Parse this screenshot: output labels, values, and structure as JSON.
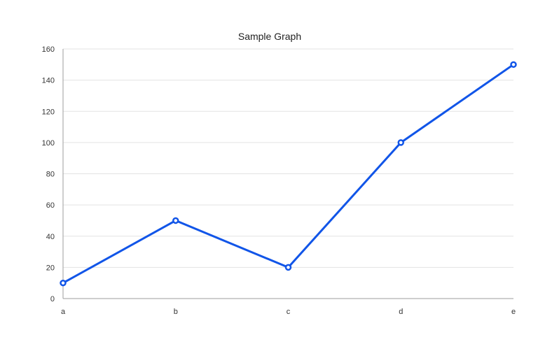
{
  "chart_data": {
    "type": "line",
    "title": "Sample Graph",
    "xlabel": "",
    "ylabel": "",
    "categories": [
      "a",
      "b",
      "c",
      "d",
      "e"
    ],
    "series": [
      {
        "values": [
          10,
          50,
          20,
          100,
          150
        ]
      }
    ],
    "ylim": [
      0,
      160
    ],
    "yticks": [
      "0",
      "20",
      "40",
      "60",
      "80",
      "100",
      "120",
      "140",
      "160"
    ],
    "grid": "horizontal",
    "legend": "none",
    "colors": {
      "series": "#1155e8",
      "grid": "#e3e3e3",
      "axis": "#9e9e9e"
    }
  }
}
